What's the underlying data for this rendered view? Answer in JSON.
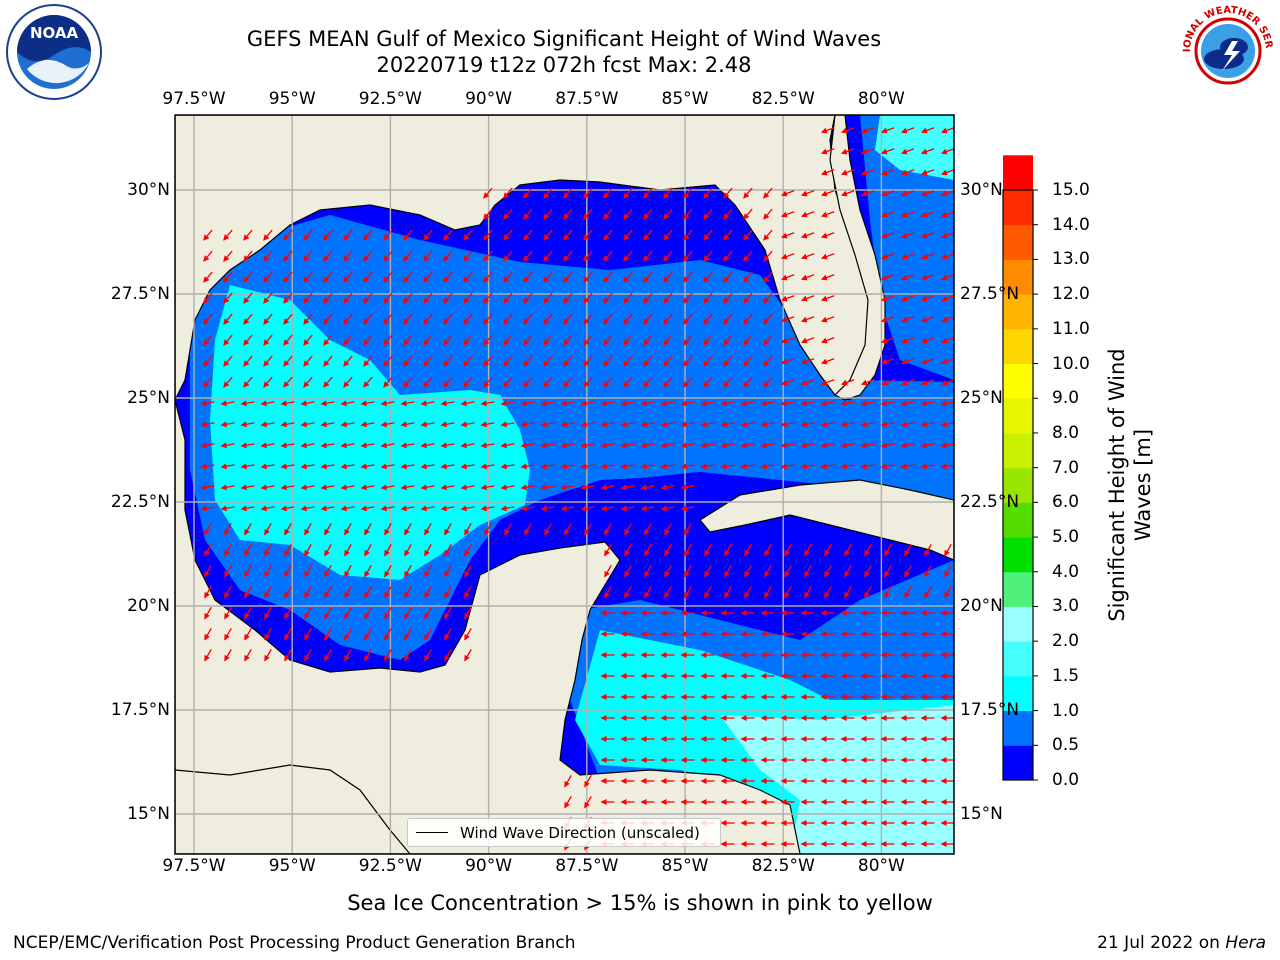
{
  "title": {
    "line1": "GEFS MEAN Gulf of Mexico Significant Height of Wind Waves",
    "line2": "20220719 t12z 072h fcst   Max: 2.48"
  },
  "axes": {
    "lon_ticks": [
      "97.5°W",
      "95°W",
      "92.5°W",
      "90°W",
      "87.5°W",
      "85°W",
      "82.5°W",
      "80°W"
    ],
    "lat_ticks": [
      "30°N",
      "27.5°N",
      "25°N",
      "22.5°N",
      "20°N",
      "17.5°N",
      "15°N"
    ]
  },
  "colorbar": {
    "label": "Significant Height of Wind Waves [m]",
    "ticks": [
      "15.0",
      "14.0",
      "13.0",
      "12.0",
      "11.0",
      "10.0",
      "9.0",
      "8.0",
      "7.0",
      "6.0",
      "5.0",
      "4.0",
      "3.0",
      "2.0",
      "1.5",
      "1.0",
      "0.5",
      "0.0"
    ],
    "colors": [
      "#0000ff",
      "#0073ff",
      "#00ffff",
      "#45ffff",
      "#99ffff",
      "#4ef07a",
      "#00e000",
      "#55dd00",
      "#99e600",
      "#c8f000",
      "#e6f500",
      "#ffff00",
      "#ffd700",
      "#ffb400",
      "#ff8c00",
      "#ff5a00",
      "#ff2a00",
      "#ff0000"
    ]
  },
  "legend": {
    "label": "Wind Wave Direction (unscaled)"
  },
  "note": "Sea Ice Concentration > 15% is shown in pink to yellow",
  "footer": {
    "left": "NCEP/EMC/Verification Post Processing Product Generation Branch",
    "date": "21 Jul 2022 on ",
    "host": "Hera"
  },
  "logos": {
    "left": "NOAA",
    "right": "NATIONAL WEATHER SERVICE"
  },
  "colors": {
    "land": "#efedde",
    "arrow": "#ff0000",
    "grid": "#b0b0b0"
  }
}
